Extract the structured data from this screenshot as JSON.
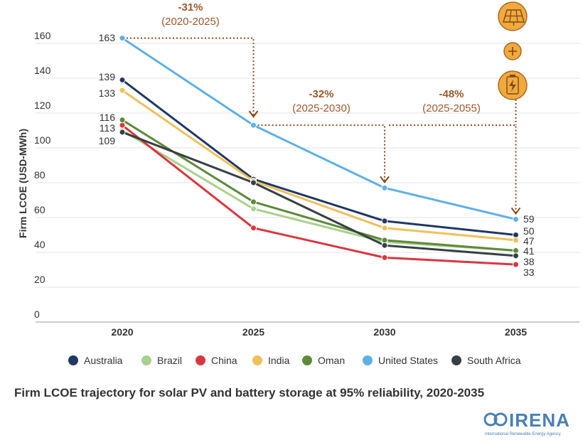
{
  "chart_data": {
    "type": "line",
    "title": "Firm LCOE trajectory for solar PV and battery storage at 95% reliability, 2020-2035",
    "xlabel": "",
    "ylabel": "Firm LCOE (USD-MWh)",
    "x": [
      "2020",
      "2025",
      "2030",
      "2035"
    ],
    "ylim": [
      0,
      170
    ],
    "yticks": [
      0,
      20,
      40,
      60,
      80,
      100,
      120,
      140,
      160
    ],
    "grid": true,
    "legend_position": "bottom",
    "series": [
      {
        "name": "Australia",
        "color": "#1f3864",
        "values": [
          139,
          82,
          58,
          50
        ],
        "end_label": "50"
      },
      {
        "name": "Brazil",
        "color": "#a9d18e",
        "values": [
          110,
          65,
          46,
          41
        ],
        "end_label": ""
      },
      {
        "name": "China",
        "color": "#d9363e",
        "values": [
          113,
          54,
          37,
          33
        ],
        "end_label": "33"
      },
      {
        "name": "India",
        "color": "#f0c05a",
        "values": [
          133,
          81,
          54,
          47
        ],
        "end_label": "47"
      },
      {
        "name": "Oman",
        "color": "#5e8a3a",
        "values": [
          116,
          69,
          47,
          41
        ],
        "end_label": "41"
      },
      {
        "name": "United States",
        "color": "#5eb0e5",
        "values": [
          163,
          113,
          77,
          59
        ],
        "end_label": "59"
      },
      {
        "name": "South Africa",
        "color": "#374045",
        "values": [
          109,
          80,
          44,
          38
        ],
        "end_label": "38"
      }
    ],
    "start_labels": [
      "163",
      "139",
      "133",
      "116",
      "113",
      "109"
    ],
    "annotations": [
      {
        "pct": "-31%",
        "range": "(2020-2025)"
      },
      {
        "pct": "-32%",
        "range": "(2025-2030)"
      },
      {
        "pct": "-48%",
        "range": "(2025-2055)"
      }
    ]
  },
  "icons": [
    "solar-panel-icon",
    "plus-icon",
    "battery-icon"
  ],
  "logo": {
    "name": "IRENA",
    "subtitle": "International Renewable Energy Agency"
  }
}
